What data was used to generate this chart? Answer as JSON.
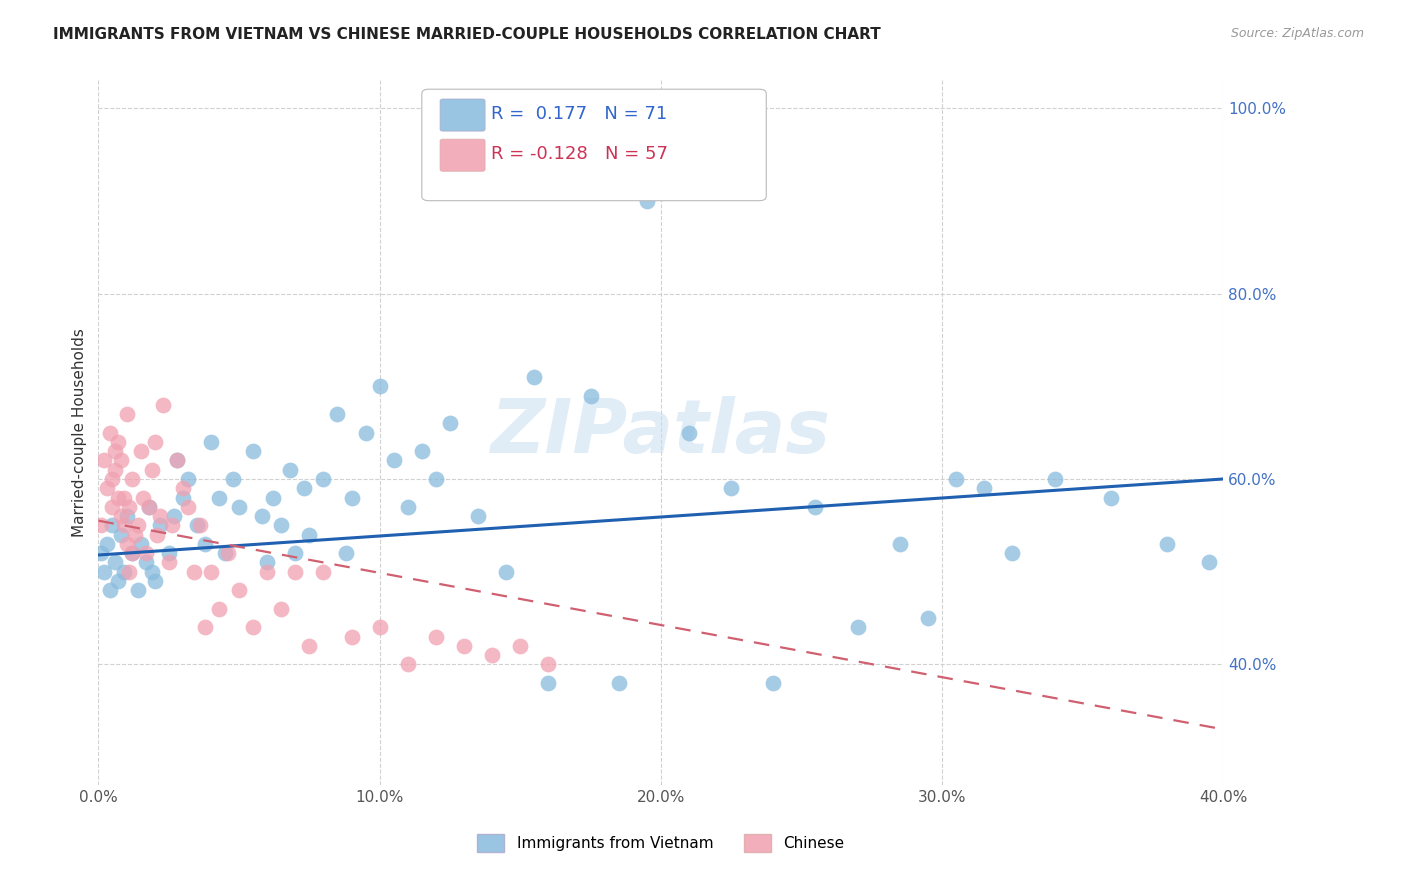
{
  "title": "IMMIGRANTS FROM VIETNAM VS CHINESE MARRIED-COUPLE HOUSEHOLDS CORRELATION CHART",
  "source": "Source: ZipAtlas.com",
  "xlabel_vietnam": "Immigrants from Vietnam",
  "xlabel_chinese": "Chinese",
  "ylabel": "Married-couple Households",
  "vietnam_R": 0.177,
  "vietnam_N": 71,
  "chinese_R": -0.128,
  "chinese_N": 57,
  "xlim": [
    0.0,
    0.4
  ],
  "ylim": [
    0.27,
    1.03
  ],
  "yticks": [
    0.4,
    0.6,
    0.8,
    1.0
  ],
  "xticks": [
    0.0,
    0.1,
    0.2,
    0.3,
    0.4
  ],
  "color_vietnam": "#88bbdd",
  "color_chinese": "#f0a0b0",
  "trendline_vietnam_color": "#2060b0",
  "trendline_chinese_color": "#d06070",
  "watermark": "ZIPatlas",
  "vietnam_x": [
    0.001,
    0.002,
    0.003,
    0.004,
    0.005,
    0.006,
    0.007,
    0.008,
    0.009,
    0.01,
    0.012,
    0.014,
    0.015,
    0.017,
    0.018,
    0.019,
    0.02,
    0.022,
    0.025,
    0.027,
    0.028,
    0.03,
    0.032,
    0.035,
    0.038,
    0.04,
    0.043,
    0.045,
    0.048,
    0.05,
    0.055,
    0.058,
    0.06,
    0.062,
    0.065,
    0.068,
    0.07,
    0.073,
    0.075,
    0.08,
    0.085,
    0.088,
    0.09,
    0.095,
    0.1,
    0.105,
    0.11,
    0.115,
    0.12,
    0.125,
    0.135,
    0.145,
    0.155,
    0.16,
    0.175,
    0.185,
    0.195,
    0.21,
    0.225,
    0.24,
    0.255,
    0.27,
    0.285,
    0.295,
    0.305,
    0.315,
    0.325,
    0.34,
    0.36,
    0.38,
    0.395
  ],
  "vietnam_y": [
    0.52,
    0.5,
    0.53,
    0.48,
    0.55,
    0.51,
    0.49,
    0.54,
    0.5,
    0.56,
    0.52,
    0.48,
    0.53,
    0.51,
    0.57,
    0.5,
    0.49,
    0.55,
    0.52,
    0.56,
    0.62,
    0.58,
    0.6,
    0.55,
    0.53,
    0.64,
    0.58,
    0.52,
    0.6,
    0.57,
    0.63,
    0.56,
    0.51,
    0.58,
    0.55,
    0.61,
    0.52,
    0.59,
    0.54,
    0.6,
    0.67,
    0.52,
    0.58,
    0.65,
    0.7,
    0.62,
    0.57,
    0.63,
    0.6,
    0.66,
    0.56,
    0.5,
    0.71,
    0.38,
    0.69,
    0.38,
    0.9,
    0.65,
    0.59,
    0.38,
    0.57,
    0.44,
    0.53,
    0.45,
    0.6,
    0.59,
    0.52,
    0.6,
    0.58,
    0.53,
    0.51
  ],
  "chinese_x": [
    0.001,
    0.002,
    0.003,
    0.004,
    0.005,
    0.005,
    0.006,
    0.006,
    0.007,
    0.007,
    0.008,
    0.008,
    0.009,
    0.009,
    0.01,
    0.01,
    0.011,
    0.011,
    0.012,
    0.012,
    0.013,
    0.014,
    0.015,
    0.016,
    0.017,
    0.018,
    0.019,
    0.02,
    0.021,
    0.022,
    0.023,
    0.025,
    0.026,
    0.028,
    0.03,
    0.032,
    0.034,
    0.036,
    0.038,
    0.04,
    0.043,
    0.046,
    0.05,
    0.055,
    0.06,
    0.065,
    0.07,
    0.075,
    0.08,
    0.09,
    0.1,
    0.11,
    0.12,
    0.13,
    0.14,
    0.15,
    0.16
  ],
  "chinese_y": [
    0.55,
    0.62,
    0.59,
    0.65,
    0.6,
    0.57,
    0.63,
    0.61,
    0.58,
    0.64,
    0.56,
    0.62,
    0.55,
    0.58,
    0.67,
    0.53,
    0.5,
    0.57,
    0.52,
    0.6,
    0.54,
    0.55,
    0.63,
    0.58,
    0.52,
    0.57,
    0.61,
    0.64,
    0.54,
    0.56,
    0.68,
    0.51,
    0.55,
    0.62,
    0.59,
    0.57,
    0.5,
    0.55,
    0.44,
    0.5,
    0.46,
    0.52,
    0.48,
    0.44,
    0.5,
    0.46,
    0.5,
    0.42,
    0.5,
    0.43,
    0.44,
    0.4,
    0.43,
    0.42,
    0.41,
    0.42,
    0.4
  ]
}
